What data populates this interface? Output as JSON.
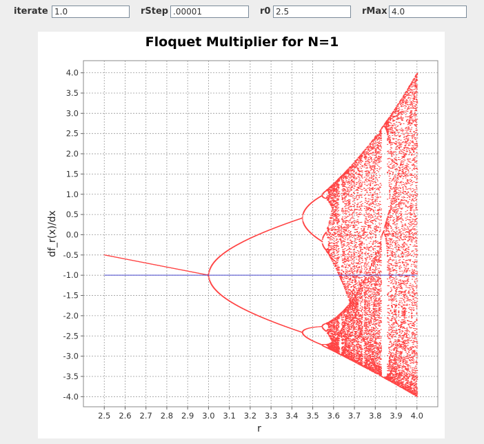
{
  "controls": {
    "iterate": {
      "label": "iterate",
      "value": "1.0"
    },
    "rStep": {
      "label": "rStep",
      "value": ".00001"
    },
    "r0": {
      "label": "r0",
      "value": "2.5"
    },
    "rMax": {
      "label": "rMax",
      "value": "4.0"
    }
  },
  "chart_data": {
    "type": "scatter",
    "title": "Floquet Multiplier for N=1",
    "xlabel": "r",
    "ylabel": "df_r(x)/dx",
    "xlim": [
      2.4,
      4.1
    ],
    "ylim": [
      -4.25,
      4.3
    ],
    "xticks": [
      "2.5",
      "2.6",
      "2.7",
      "2.8",
      "2.9",
      "3.0",
      "3.1",
      "3.2",
      "3.3",
      "3.4",
      "3.5",
      "3.6",
      "3.7",
      "3.8",
      "3.9",
      "4.0"
    ],
    "yticks": [
      "-4.0",
      "-3.5",
      "-3.0",
      "-2.5",
      "-2.0",
      "-1.5",
      "-1.0",
      "-0.5",
      "0.0",
      "0.5",
      "1.0",
      "1.5",
      "2.0",
      "2.5",
      "3.0",
      "3.5",
      "4.0"
    ],
    "grid": true,
    "series": [
      {
        "color": "#ff4444",
        "description_source": "floquet multiplier f'_r(x) = r(1 - 2x) over logistic map orbit, r from 2.5 to 4.0"
      },
      {
        "color": "#4444cc",
        "line_y": -1.0,
        "x_range": [
          2.5,
          4.0
        ]
      }
    ]
  }
}
